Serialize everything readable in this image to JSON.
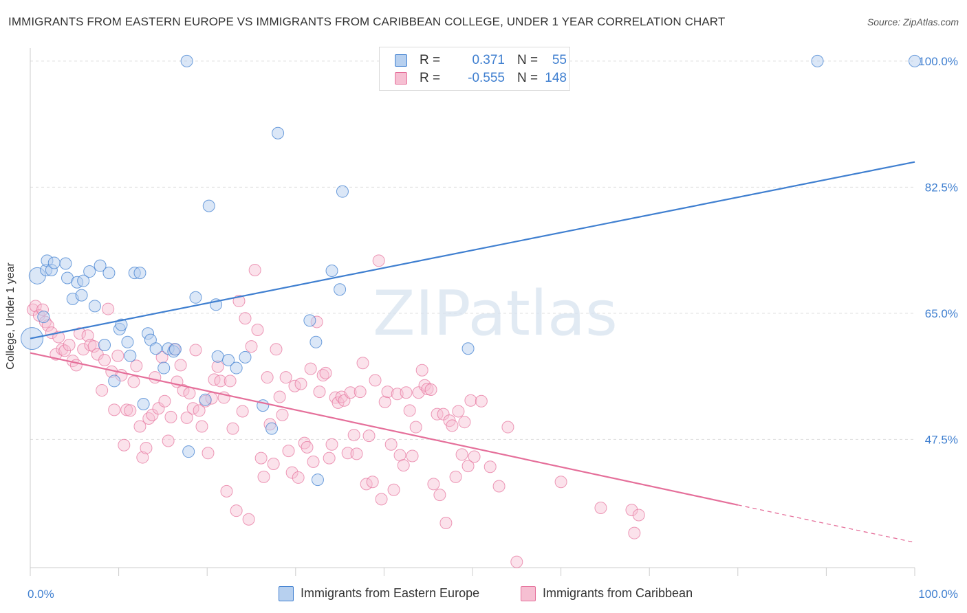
{
  "title": "IMMIGRANTS FROM EASTERN EUROPE VS IMMIGRANTS FROM CARIBBEAN COLLEGE, UNDER 1 YEAR CORRELATION CHART",
  "source": "Source: ZipAtlas.com",
  "watermark": "ZIPatlas",
  "colors": {
    "blue": "#3f7fd0",
    "blue_fill": "#b7d0ef",
    "pink": "#e56f9a",
    "pink_fill": "#f6bfd2",
    "grid": "#dddddd",
    "axis_text": "#3f7fd0"
  },
  "legend": {
    "series1": {
      "r_label": "R =",
      "r_value": "0.371",
      "n_label": "N =",
      "n_value": "55"
    },
    "series2": {
      "r_label": "R =",
      "r_value": "-0.555",
      "n_label": "N =",
      "n_value": "148"
    }
  },
  "bottom_legend": {
    "series1": "Immigrants from Eastern Europe",
    "series2": "Immigrants from Caribbean"
  },
  "chart_data": {
    "type": "scatter",
    "title": "IMMIGRANTS FROM EASTERN EUROPE VS IMMIGRANTS FROM CARIBBEAN COLLEGE, UNDER 1 YEAR CORRELATION CHART",
    "xlabel": "",
    "ylabel": "College, Under 1 year",
    "xlim": [
      0,
      100
    ],
    "ylim": [
      29.7,
      101.8
    ],
    "x_tick_labels": [
      "0.0%",
      "100.0%"
    ],
    "y_ticks": [
      47.5,
      65.0,
      82.5,
      100.0
    ],
    "y_tick_labels": [
      "47.5%",
      "65.0%",
      "82.5%",
      "100.0%"
    ],
    "grid": true,
    "legend_position": "top-center",
    "series": [
      {
        "name": "Immigrants from Eastern Europe",
        "color": "#3f7fd0",
        "R": 0.371,
        "N": 55,
        "trend": {
          "x": [
            0,
            100
          ],
          "y": [
            61.5,
            86.0
          ]
        },
        "points": [
          [
            0.2,
            61.5
          ],
          [
            0.8,
            70.2
          ],
          [
            1.5,
            64.5
          ],
          [
            1.8,
            71.0
          ],
          [
            1.9,
            72.3
          ],
          [
            2.4,
            71.0
          ],
          [
            2.7,
            72.0
          ],
          [
            4.0,
            71.9
          ],
          [
            4.2,
            69.9
          ],
          [
            4.8,
            67.0
          ],
          [
            5.3,
            69.3
          ],
          [
            5.8,
            67.5
          ],
          [
            6.0,
            69.5
          ],
          [
            6.7,
            70.8
          ],
          [
            7.3,
            66.0
          ],
          [
            7.9,
            71.6
          ],
          [
            8.4,
            60.6
          ],
          [
            8.9,
            70.6
          ],
          [
            9.5,
            55.6
          ],
          [
            10.1,
            62.8
          ],
          [
            10.3,
            63.4
          ],
          [
            11.0,
            61.0
          ],
          [
            11.3,
            59.1
          ],
          [
            11.8,
            70.6
          ],
          [
            12.4,
            70.6
          ],
          [
            12.8,
            52.4
          ],
          [
            13.3,
            62.2
          ],
          [
            13.6,
            61.3
          ],
          [
            14.2,
            60.1
          ],
          [
            15.1,
            57.4
          ],
          [
            15.6,
            60.1
          ],
          [
            16.2,
            59.7
          ],
          [
            16.4,
            60.0
          ],
          [
            17.9,
            45.8
          ],
          [
            18.7,
            67.2
          ],
          [
            20.2,
            79.9
          ],
          [
            19.8,
            53.0
          ],
          [
            21.0,
            66.2
          ],
          [
            21.2,
            59.0
          ],
          [
            22.4,
            58.5
          ],
          [
            23.3,
            57.4
          ],
          [
            24.3,
            58.9
          ],
          [
            26.3,
            52.2
          ],
          [
            27.3,
            49.0
          ],
          [
            31.6,
            64.0
          ],
          [
            32.3,
            61.0
          ],
          [
            32.5,
            41.9
          ],
          [
            34.1,
            70.9
          ],
          [
            35.0,
            68.3
          ],
          [
            35.3,
            81.9
          ],
          [
            28.0,
            90.0
          ],
          [
            17.7,
            100.0
          ],
          [
            89.0,
            100.0
          ],
          [
            100.0,
            100.0
          ],
          [
            49.5,
            60.1
          ]
        ]
      },
      {
        "name": "Immigrants from Caribbean",
        "color": "#e56f9a",
        "R": -0.555,
        "N": 148,
        "trend_solid": {
          "x": [
            0,
            80
          ],
          "y": [
            59.5,
            38.4
          ]
        },
        "trend_dashed": {
          "x": [
            80,
            100
          ],
          "y": [
            38.4,
            33.2
          ]
        },
        "points": [
          [
            0.3,
            65.5
          ],
          [
            0.6,
            66.0
          ],
          [
            1.0,
            64.7
          ],
          [
            1.4,
            65.5
          ],
          [
            1.7,
            63.8
          ],
          [
            2.0,
            63.3
          ],
          [
            2.4,
            62.3
          ],
          [
            2.9,
            59.3
          ],
          [
            3.2,
            61.7
          ],
          [
            3.6,
            60.0
          ],
          [
            3.9,
            59.8
          ],
          [
            4.4,
            60.6
          ],
          [
            4.8,
            58.4
          ],
          [
            5.2,
            57.8
          ],
          [
            5.6,
            62.2
          ],
          [
            6.0,
            60.0
          ],
          [
            6.5,
            61.9
          ],
          [
            6.8,
            60.6
          ],
          [
            7.2,
            60.4
          ],
          [
            7.6,
            59.3
          ],
          [
            8.1,
            54.3
          ],
          [
            8.4,
            58.5
          ],
          [
            8.8,
            65.6
          ],
          [
            9.2,
            56.9
          ],
          [
            9.5,
            51.6
          ],
          [
            9.9,
            59.1
          ],
          [
            10.3,
            56.4
          ],
          [
            10.6,
            46.7
          ],
          [
            10.9,
            51.6
          ],
          [
            11.3,
            51.5
          ],
          [
            11.7,
            55.5
          ],
          [
            12.0,
            57.7
          ],
          [
            12.4,
            49.3
          ],
          [
            12.7,
            45.0
          ],
          [
            13.1,
            46.3
          ],
          [
            13.4,
            50.4
          ],
          [
            13.8,
            50.9
          ],
          [
            14.1,
            56.1
          ],
          [
            14.5,
            51.8
          ],
          [
            14.9,
            58.9
          ],
          [
            15.2,
            52.8
          ],
          [
            15.6,
            47.3
          ],
          [
            15.9,
            50.6
          ],
          [
            16.3,
            60.0
          ],
          [
            16.6,
            55.5
          ],
          [
            17.0,
            57.8
          ],
          [
            17.3,
            54.3
          ],
          [
            17.7,
            50.5
          ],
          [
            18.0,
            53.9
          ],
          [
            18.4,
            51.8
          ],
          [
            18.7,
            59.9
          ],
          [
            19.1,
            51.5
          ],
          [
            19.4,
            49.3
          ],
          [
            19.8,
            52.8
          ],
          [
            20.1,
            45.6
          ],
          [
            20.5,
            53.2
          ],
          [
            20.8,
            55.8
          ],
          [
            21.2,
            57.6
          ],
          [
            21.5,
            55.6
          ],
          [
            21.9,
            53.3
          ],
          [
            22.2,
            40.3
          ],
          [
            22.6,
            55.6
          ],
          [
            22.9,
            49.0
          ],
          [
            23.3,
            37.6
          ],
          [
            23.6,
            66.7
          ],
          [
            24.0,
            51.4
          ],
          [
            24.3,
            64.3
          ],
          [
            24.7,
            36.4
          ],
          [
            25.0,
            60.4
          ],
          [
            25.4,
            71.0
          ],
          [
            25.7,
            62.7
          ],
          [
            26.1,
            44.9
          ],
          [
            26.4,
            42.3
          ],
          [
            26.8,
            56.1
          ],
          [
            27.1,
            49.6
          ],
          [
            27.5,
            44.1
          ],
          [
            27.8,
            60.0
          ],
          [
            28.2,
            53.4
          ],
          [
            28.5,
            50.9
          ],
          [
            28.9,
            56.1
          ],
          [
            29.2,
            45.9
          ],
          [
            29.6,
            42.9
          ],
          [
            29.9,
            54.9
          ],
          [
            30.3,
            42.2
          ],
          [
            30.6,
            55.2
          ],
          [
            31.0,
            47.0
          ],
          [
            31.3,
            46.4
          ],
          [
            31.7,
            57.3
          ],
          [
            32.0,
            44.4
          ],
          [
            32.4,
            63.8
          ],
          [
            32.7,
            54.1
          ],
          [
            33.1,
            56.4
          ],
          [
            33.4,
            56.7
          ],
          [
            33.8,
            44.9
          ],
          [
            34.1,
            46.8
          ],
          [
            34.5,
            53.3
          ],
          [
            34.8,
            52.6
          ],
          [
            35.2,
            53.4
          ],
          [
            35.5,
            52.9
          ],
          [
            35.9,
            45.6
          ],
          [
            36.2,
            54.0
          ],
          [
            36.6,
            48.1
          ],
          [
            36.9,
            45.5
          ],
          [
            37.3,
            54.1
          ],
          [
            37.6,
            58.1
          ],
          [
            38.0,
            41.3
          ],
          [
            38.3,
            48.0
          ],
          [
            38.7,
            41.6
          ],
          [
            39.0,
            55.7
          ],
          [
            39.4,
            72.3
          ],
          [
            39.7,
            39.2
          ],
          [
            40.1,
            52.7
          ],
          [
            40.4,
            54.1
          ],
          [
            40.8,
            46.8
          ],
          [
            41.1,
            40.5
          ],
          [
            41.5,
            53.8
          ],
          [
            41.8,
            45.3
          ],
          [
            42.2,
            43.9
          ],
          [
            42.5,
            54.0
          ],
          [
            42.9,
            51.5
          ],
          [
            43.2,
            45.2
          ],
          [
            43.6,
            49.2
          ],
          [
            43.9,
            54.0
          ],
          [
            44.3,
            57.1
          ],
          [
            44.6,
            55.0
          ],
          [
            44.9,
            54.5
          ],
          [
            45.3,
            54.4
          ],
          [
            45.6,
            41.3
          ],
          [
            46.0,
            51.0
          ],
          [
            46.3,
            39.8
          ],
          [
            46.7,
            51.0
          ],
          [
            47.0,
            35.9
          ],
          [
            47.4,
            50.1
          ],
          [
            47.7,
            49.4
          ],
          [
            48.1,
            42.3
          ],
          [
            48.4,
            51.4
          ],
          [
            48.8,
            45.4
          ],
          [
            49.1,
            49.9
          ],
          [
            49.5,
            43.8
          ],
          [
            49.8,
            52.9
          ],
          [
            50.2,
            45.1
          ],
          [
            51.0,
            52.8
          ],
          [
            52.0,
            43.7
          ],
          [
            53.0,
            41.0
          ],
          [
            54.0,
            49.2
          ],
          [
            55.0,
            30.5
          ],
          [
            60.0,
            41.6
          ],
          [
            64.5,
            38.0
          ],
          [
            68.0,
            37.7
          ],
          [
            68.3,
            34.5
          ],
          [
            68.8,
            37.0
          ]
        ]
      }
    ]
  }
}
